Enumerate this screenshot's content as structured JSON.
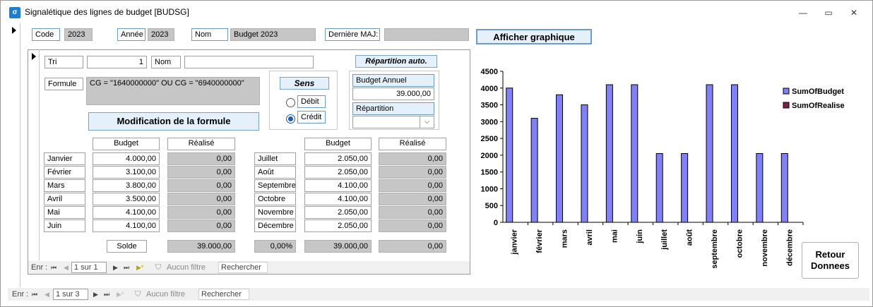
{
  "window": {
    "title": "Signalétique des lignes de budget [BUDSG]",
    "minimize_glyph": "—",
    "restore_glyph": "▭",
    "close_glyph": "✕"
  },
  "header": {
    "code_label": "Code",
    "code_value": "2023",
    "annee_label": "Année",
    "annee_value": "2023",
    "nom_label": "Nom",
    "nom_value": "Budget 2023",
    "maj_label": "Dernière MAJ:",
    "maj_value": "",
    "graph_button": "Afficher graphique"
  },
  "sub": {
    "tri_label": "Tri",
    "tri_value": "1",
    "nom_label": "Nom",
    "nom_value": "",
    "formule_label": "Formule",
    "formule_value": "CG = \"1640000000\"  OU CG = \"6940000000\"",
    "modif_button": "Modification de la formule",
    "sens_label": "Sens",
    "debit_label": "Débit",
    "credit_label": "Crédit",
    "repartition_auto_button": "Répartition auto.",
    "budget_annuel_label": "Budget Annuel",
    "budget_annuel_value": "39.000,00",
    "repartition_label": "Répartition",
    "repartition_value": "",
    "budget_header": "Budget",
    "realise_header": "Réalisé",
    "months_left": [
      {
        "name": "Janvier",
        "budget": "4.000,00",
        "realise": "0,00"
      },
      {
        "name": "Février",
        "budget": "3.100,00",
        "realise": "0,00"
      },
      {
        "name": "Mars",
        "budget": "3.800,00",
        "realise": "0,00"
      },
      {
        "name": "Avril",
        "budget": "3.500,00",
        "realise": "0,00"
      },
      {
        "name": "Mai",
        "budget": "4.100,00",
        "realise": "0,00"
      },
      {
        "name": "Juin",
        "budget": "4.100,00",
        "realise": "0,00"
      }
    ],
    "months_right": [
      {
        "name": "Juillet",
        "budget": "2.050,00",
        "realise": "0,00"
      },
      {
        "name": "Août",
        "budget": "2.050,00",
        "realise": "0,00"
      },
      {
        "name": "Septembre",
        "budget": "4.100,00",
        "realise": "0,00"
      },
      {
        "name": "Octobre",
        "budget": "4.100,00",
        "realise": "0,00"
      },
      {
        "name": "Novembre",
        "budget": "2.050,00",
        "realise": "0,00"
      },
      {
        "name": "Décembre",
        "budget": "2.050,00",
        "realise": "0,00"
      }
    ],
    "solde_label": "Solde",
    "solde_realise": "39.000,00",
    "solde_pct": "0,00%",
    "solde_budget": "39.000,00",
    "solde_realise2": "0,00"
  },
  "subnav": {
    "enr_label": "Enr :",
    "position": "1 sur 1",
    "filter_label": "Aucun filtre",
    "search_label": "Rechercher"
  },
  "mainnav": {
    "enr_label": "Enr :",
    "position": "1 sur 3",
    "filter_label": "Aucun filtre",
    "search_label": "Rechercher"
  },
  "retour_button_line1": "Retour",
  "retour_button_line2": "Donnees",
  "colors": {
    "budget_bar": "#8080ff",
    "realise_bar": "#80204a"
  },
  "chart_data": {
    "type": "bar",
    "categories": [
      "janvier",
      "février",
      "mars",
      "avril",
      "mai",
      "juin",
      "juillet",
      "août",
      "septembre",
      "octobre",
      "novembre",
      "décembre"
    ],
    "series": [
      {
        "name": "SumOfBudget",
        "values": [
          4000,
          3100,
          3800,
          3500,
          4100,
          4100,
          2050,
          2050,
          4100,
          4100,
          2050,
          2050
        ]
      },
      {
        "name": "SumOfRealise",
        "values": [
          0,
          0,
          0,
          0,
          0,
          0,
          0,
          0,
          0,
          0,
          0,
          0
        ]
      }
    ],
    "ylim": [
      0,
      4500
    ],
    "yticks": [
      "0",
      "500",
      "1000",
      "1500",
      "2000",
      "2500",
      "3000",
      "3500",
      "4000",
      "4500"
    ],
    "legend_placement": "right",
    "grid": false
  }
}
